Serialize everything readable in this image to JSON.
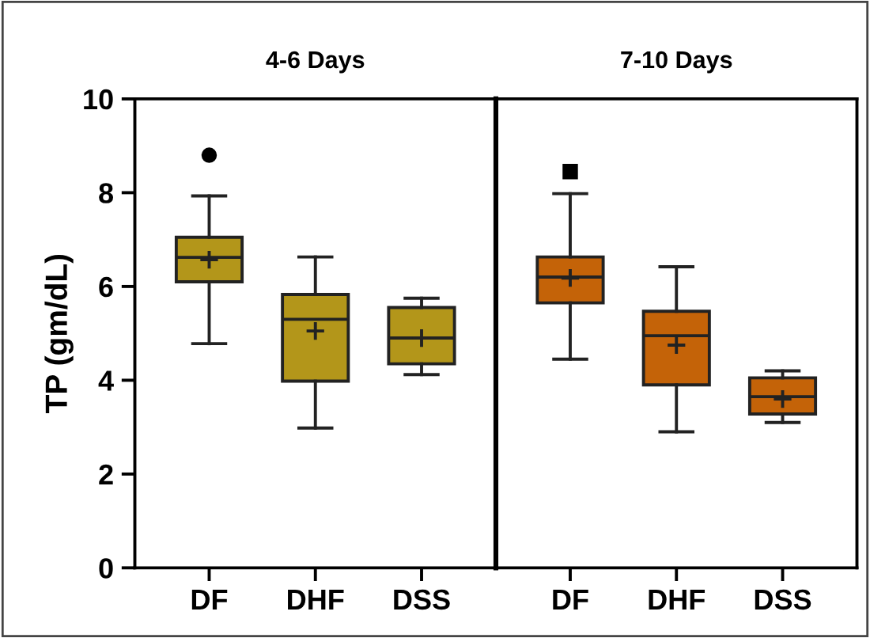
{
  "chart_data": [
    {
      "type": "box",
      "title": "4-6 Days",
      "ylabel": "TP (gm/dL)",
      "categories": [
        "DF",
        "DHF",
        "DSS"
      ],
      "ylim": [
        0,
        10
      ],
      "yticks": [
        0,
        2,
        4,
        6,
        8,
        10
      ],
      "marker": "circle",
      "grid": false,
      "series": [
        {
          "color": "#b3961a",
          "boxes": [
            {
              "low": 4.78,
              "q1": 6.1,
              "median": 6.62,
              "q3": 7.05,
              "high": 7.93,
              "mean": 6.57,
              "outliers": [
                8.8
              ]
            },
            {
              "low": 2.98,
              "q1": 3.98,
              "median": 5.3,
              "q3": 5.83,
              "high": 6.63,
              "mean": 5.05
            },
            {
              "low": 4.12,
              "q1": 4.35,
              "median": 4.9,
              "q3": 5.55,
              "high": 5.75,
              "mean": 4.9
            }
          ]
        }
      ]
    },
    {
      "type": "box",
      "title": "7-10 Days",
      "categories": [
        "DF",
        "DHF",
        "DSS"
      ],
      "ylim": [
        0,
        10
      ],
      "yticks": [
        0,
        2,
        4,
        6,
        8,
        10
      ],
      "tick_labels": "x",
      "marker": "square",
      "grid": false,
      "series": [
        {
          "color": "#c46308",
          "boxes": [
            {
              "low": 4.45,
              "q1": 5.65,
              "median": 6.2,
              "q3": 6.63,
              "high": 7.98,
              "mean": 6.18,
              "outliers": [
                8.45
              ]
            },
            {
              "low": 2.9,
              "q1": 3.9,
              "median": 4.95,
              "q3": 5.47,
              "high": 6.42,
              "mean": 4.75
            },
            {
              "low": 3.1,
              "q1": 3.28,
              "median": 3.65,
              "q3": 4.05,
              "high": 4.2,
              "mean": 3.6
            }
          ]
        }
      ]
    }
  ]
}
